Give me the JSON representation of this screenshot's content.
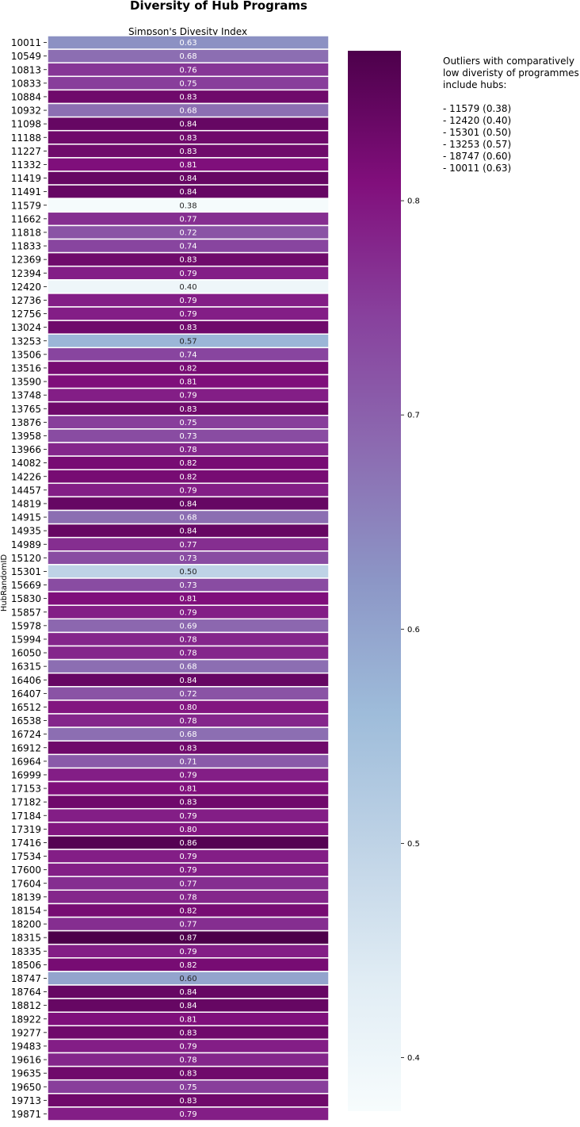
{
  "chart_data": {
    "type": "heatmap",
    "title": "Diversity of Hub Programs",
    "xlabel": "Simpson's Divesity Index",
    "ylabel": "HubRandomID",
    "colormap": "BuPu",
    "colorbar_range": [
      0.375,
      0.87
    ],
    "colorbar_ticks": [
      "0.4",
      "0.5",
      "0.6",
      "0.7",
      "0.8"
    ],
    "rows": [
      {
        "id": "10011",
        "value": 0.63,
        "label": "0.63"
      },
      {
        "id": "10549",
        "value": 0.68,
        "label": "0.68"
      },
      {
        "id": "10813",
        "value": 0.76,
        "label": "0.76"
      },
      {
        "id": "10833",
        "value": 0.75,
        "label": "0.75"
      },
      {
        "id": "10884",
        "value": 0.83,
        "label": "0.83"
      },
      {
        "id": "10932",
        "value": 0.68,
        "label": "0.68"
      },
      {
        "id": "11098",
        "value": 0.84,
        "label": "0.84"
      },
      {
        "id": "11188",
        "value": 0.83,
        "label": "0.83"
      },
      {
        "id": "11227",
        "value": 0.83,
        "label": "0.83"
      },
      {
        "id": "11332",
        "value": 0.81,
        "label": "0.81"
      },
      {
        "id": "11419",
        "value": 0.84,
        "label": "0.84"
      },
      {
        "id": "11491",
        "value": 0.84,
        "label": "0.84"
      },
      {
        "id": "11579",
        "value": 0.38,
        "label": "0.38"
      },
      {
        "id": "11662",
        "value": 0.77,
        "label": "0.77"
      },
      {
        "id": "11818",
        "value": 0.72,
        "label": "0.72"
      },
      {
        "id": "11833",
        "value": 0.74,
        "label": "0.74"
      },
      {
        "id": "12369",
        "value": 0.83,
        "label": "0.83"
      },
      {
        "id": "12394",
        "value": 0.79,
        "label": "0.79"
      },
      {
        "id": "12420",
        "value": 0.4,
        "label": "0.40"
      },
      {
        "id": "12736",
        "value": 0.79,
        "label": "0.79"
      },
      {
        "id": "12756",
        "value": 0.79,
        "label": "0.79"
      },
      {
        "id": "13024",
        "value": 0.83,
        "label": "0.83"
      },
      {
        "id": "13253",
        "value": 0.57,
        "label": "0.57"
      },
      {
        "id": "13506",
        "value": 0.74,
        "label": "0.74"
      },
      {
        "id": "13516",
        "value": 0.82,
        "label": "0.82"
      },
      {
        "id": "13590",
        "value": 0.81,
        "label": "0.81"
      },
      {
        "id": "13748",
        "value": 0.79,
        "label": "0.79"
      },
      {
        "id": "13765",
        "value": 0.83,
        "label": "0.83"
      },
      {
        "id": "13876",
        "value": 0.75,
        "label": "0.75"
      },
      {
        "id": "13958",
        "value": 0.73,
        "label": "0.73"
      },
      {
        "id": "13966",
        "value": 0.78,
        "label": "0.78"
      },
      {
        "id": "14082",
        "value": 0.82,
        "label": "0.82"
      },
      {
        "id": "14226",
        "value": 0.82,
        "label": "0.82"
      },
      {
        "id": "14457",
        "value": 0.79,
        "label": "0.79"
      },
      {
        "id": "14819",
        "value": 0.84,
        "label": "0.84"
      },
      {
        "id": "14915",
        "value": 0.68,
        "label": "0.68"
      },
      {
        "id": "14935",
        "value": 0.84,
        "label": "0.84"
      },
      {
        "id": "14989",
        "value": 0.77,
        "label": "0.77"
      },
      {
        "id": "15120",
        "value": 0.73,
        "label": "0.73"
      },
      {
        "id": "15301",
        "value": 0.5,
        "label": "0.50"
      },
      {
        "id": "15669",
        "value": 0.73,
        "label": "0.73"
      },
      {
        "id": "15830",
        "value": 0.81,
        "label": "0.81"
      },
      {
        "id": "15857",
        "value": 0.79,
        "label": "0.79"
      },
      {
        "id": "15978",
        "value": 0.69,
        "label": "0.69"
      },
      {
        "id": "15994",
        "value": 0.78,
        "label": "0.78"
      },
      {
        "id": "16050",
        "value": 0.78,
        "label": "0.78"
      },
      {
        "id": "16315",
        "value": 0.68,
        "label": "0.68"
      },
      {
        "id": "16406",
        "value": 0.84,
        "label": "0.84"
      },
      {
        "id": "16407",
        "value": 0.72,
        "label": "0.72"
      },
      {
        "id": "16512",
        "value": 0.8,
        "label": "0.80"
      },
      {
        "id": "16538",
        "value": 0.78,
        "label": "0.78"
      },
      {
        "id": "16724",
        "value": 0.68,
        "label": "0.68"
      },
      {
        "id": "16912",
        "value": 0.83,
        "label": "0.83"
      },
      {
        "id": "16964",
        "value": 0.71,
        "label": "0.71"
      },
      {
        "id": "16999",
        "value": 0.79,
        "label": "0.79"
      },
      {
        "id": "17153",
        "value": 0.81,
        "label": "0.81"
      },
      {
        "id": "17182",
        "value": 0.83,
        "label": "0.83"
      },
      {
        "id": "17184",
        "value": 0.79,
        "label": "0.79"
      },
      {
        "id": "17319",
        "value": 0.8,
        "label": "0.80"
      },
      {
        "id": "17416",
        "value": 0.86,
        "label": "0.86"
      },
      {
        "id": "17534",
        "value": 0.79,
        "label": "0.79"
      },
      {
        "id": "17600",
        "value": 0.79,
        "label": "0.79"
      },
      {
        "id": "17604",
        "value": 0.77,
        "label": "0.77"
      },
      {
        "id": "18139",
        "value": 0.78,
        "label": "0.78"
      },
      {
        "id": "18154",
        "value": 0.82,
        "label": "0.82"
      },
      {
        "id": "18200",
        "value": 0.77,
        "label": "0.77"
      },
      {
        "id": "18315",
        "value": 0.87,
        "label": "0.87"
      },
      {
        "id": "18335",
        "value": 0.79,
        "label": "0.79"
      },
      {
        "id": "18506",
        "value": 0.82,
        "label": "0.82"
      },
      {
        "id": "18747",
        "value": 0.6,
        "label": "0.60"
      },
      {
        "id": "18764",
        "value": 0.84,
        "label": "0.84"
      },
      {
        "id": "18812",
        "value": 0.84,
        "label": "0.84"
      },
      {
        "id": "18922",
        "value": 0.81,
        "label": "0.81"
      },
      {
        "id": "19277",
        "value": 0.83,
        "label": "0.83"
      },
      {
        "id": "19483",
        "value": 0.79,
        "label": "0.79"
      },
      {
        "id": "19616",
        "value": 0.78,
        "label": "0.78"
      },
      {
        "id": "19635",
        "value": 0.83,
        "label": "0.83"
      },
      {
        "id": "19650",
        "value": 0.75,
        "label": "0.75"
      },
      {
        "id": "19713",
        "value": 0.83,
        "label": "0.83"
      },
      {
        "id": "19871",
        "value": 0.79,
        "label": "0.79"
      }
    ]
  },
  "annotation": {
    "lines": [
      "Outliers with comparatively",
      "low diveristy of programmes",
      "include hubs:",
      "",
      "- 11579 (0.38)",
      "- 12420 (0.40)",
      "- 15301 (0.50)",
      "- 13253 (0.57)",
      "- 18747 (0.60)",
      "- 10011 (0.63)"
    ]
  }
}
